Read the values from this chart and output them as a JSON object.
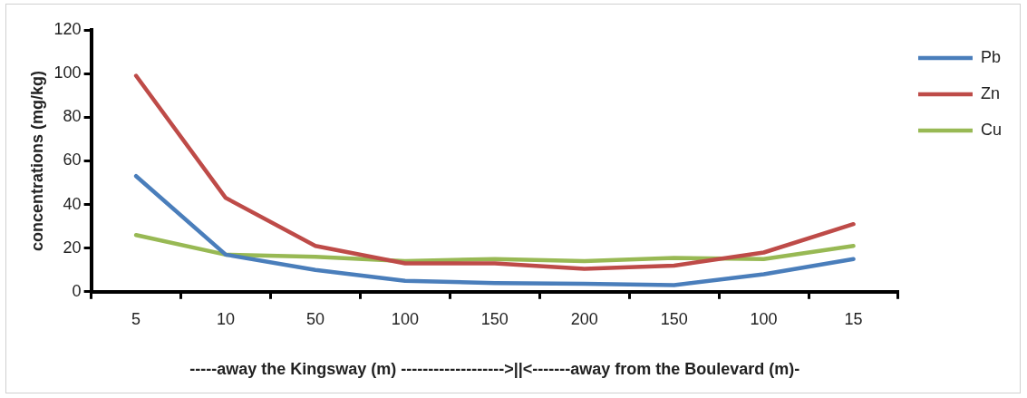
{
  "chart_data": {
    "type": "line",
    "xlabel": "-----away the Kingsway (m) ------------------->||<-------away from the Boulevard (m)-",
    "ylabel": "concentrations (mg/kg)",
    "categories": [
      "5",
      "10",
      "50",
      "100",
      "150",
      "200",
      "150",
      "100",
      "15"
    ],
    "series": [
      {
        "name": "Pb",
        "color": "#4a7ebb",
        "values": [
          53,
          17,
          10,
          5,
          4,
          3.7,
          3,
          8,
          15
        ]
      },
      {
        "name": "Zn",
        "color": "#be4b48",
        "values": [
          99,
          43,
          21,
          13,
          13,
          10.5,
          12,
          18,
          31
        ]
      },
      {
        "name": "Cu",
        "color": "#98b954",
        "values": [
          26,
          17,
          16,
          14,
          15,
          14,
          15.5,
          15,
          21
        ]
      }
    ],
    "ylim": [
      0,
      120
    ],
    "yticks": [
      0,
      20,
      40,
      60,
      80,
      100,
      120
    ],
    "grid": false,
    "legend": "top right",
    "marker": "none",
    "line_style": "solid"
  }
}
